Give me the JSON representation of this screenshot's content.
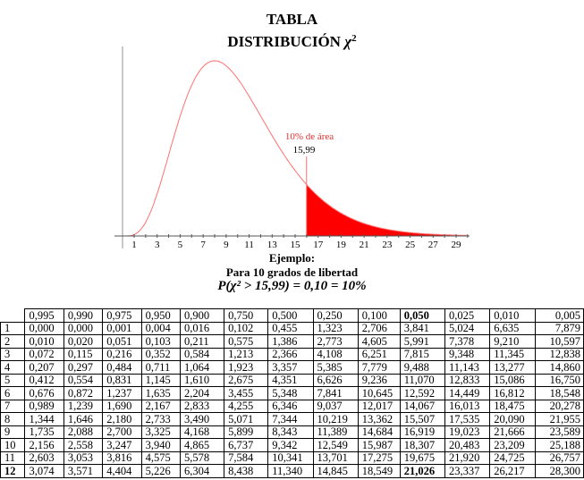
{
  "header": {
    "title_line1": "TABLA",
    "title_line2": "DISTRIBUCIÓN",
    "title_symbol": "χ",
    "title_superscript": "2"
  },
  "chart_data": {
    "type": "area",
    "title": "Distribución χ² (10 grados de libertad)",
    "xlabel": "",
    "ylabel": "",
    "x_ticks": [
      1,
      3,
      5,
      7,
      9,
      11,
      13,
      15,
      17,
      19,
      21,
      23,
      25,
      27,
      29
    ],
    "xlim": [
      0,
      30
    ],
    "degrees_of_freedom": 10,
    "critical_value": 15.99,
    "shaded_region": {
      "from": 15.99,
      "to": 30,
      "area_percent": 10
    },
    "annotation_area": "10% de área",
    "annotation_value": "15,99",
    "curve_color": "#ff7070",
    "fill_color": "#ff0000",
    "grid": false
  },
  "example": {
    "heading": "Ejemplo:",
    "subheading": "Para 10 grados de libertad",
    "formula": "P(χ² > 15,99) = 0,10 = 10%"
  },
  "table": {
    "columns": [
      "0,995",
      "0,990",
      "0,975",
      "0,950",
      "0,900",
      "0,750",
      "0,500",
      "0,250",
      "0,100",
      "0,050",
      "0,025",
      "0,010",
      "0,005"
    ],
    "rows": [
      {
        "df": "1",
        "values": [
          "0,000",
          "0,000",
          "0,001",
          "0,004",
          "0,016",
          "0,102",
          "0,455",
          "1,323",
          "2,706",
          "3,841",
          "5,024",
          "6,635",
          "7,879"
        ]
      },
      {
        "df": "2",
        "values": [
          "0,010",
          "0,020",
          "0,051",
          "0,103",
          "0,211",
          "0,575",
          "1,386",
          "2,773",
          "4,605",
          "5,991",
          "7,378",
          "9,210",
          "10,597"
        ]
      },
      {
        "df": "3",
        "values": [
          "0,072",
          "0,115",
          "0,216",
          "0,352",
          "0,584",
          "1,213",
          "2,366",
          "4,108",
          "6,251",
          "7,815",
          "9,348",
          "11,345",
          "12,838"
        ]
      },
      {
        "df": "4",
        "values": [
          "0,207",
          "0,297",
          "0,484",
          "0,711",
          "1,064",
          "1,923",
          "3,357",
          "5,385",
          "7,779",
          "9,488",
          "11,143",
          "13,277",
          "14,860"
        ]
      },
      {
        "df": "5",
        "values": [
          "0,412",
          "0,554",
          "0,831",
          "1,145",
          "1,610",
          "2,675",
          "4,351",
          "6,626",
          "9,236",
          "11,070",
          "12,833",
          "15,086",
          "16,750"
        ]
      },
      {
        "df": "6",
        "values": [
          "0,676",
          "0,872",
          "1,237",
          "1,635",
          "2,204",
          "3,455",
          "5,348",
          "7,841",
          "10,645",
          "12,592",
          "14,449",
          "16,812",
          "18,548"
        ]
      },
      {
        "df": "7",
        "values": [
          "0,989",
          "1,239",
          "1,690",
          "2,167",
          "2,833",
          "4,255",
          "6,346",
          "9,037",
          "12,017",
          "14,067",
          "16,013",
          "18,475",
          "20,278"
        ]
      },
      {
        "df": "8",
        "values": [
          "1,344",
          "1,646",
          "2,180",
          "2,733",
          "3,490",
          "5,071",
          "7,344",
          "10,219",
          "13,362",
          "15,507",
          "17,535",
          "20,090",
          "21,955"
        ]
      },
      {
        "df": "9",
        "values": [
          "1,735",
          "2,088",
          "2,700",
          "3,325",
          "4,168",
          "5,899",
          "8,343",
          "11,389",
          "14,684",
          "16,919",
          "19,023",
          "21,666",
          "23,589"
        ]
      },
      {
        "df": "10",
        "values": [
          "2,156",
          "2,558",
          "3,247",
          "3,940",
          "4,865",
          "6,737",
          "9,342",
          "12,549",
          "15,987",
          "18,307",
          "20,483",
          "23,209",
          "25,188"
        ]
      },
      {
        "df": "11",
        "values": [
          "2,603",
          "3,053",
          "3,816",
          "4,575",
          "5,578",
          "7,584",
          "10,341",
          "13,701",
          "17,275",
          "19,675",
          "21,920",
          "24,725",
          "26,757"
        ]
      },
      {
        "df": "12",
        "values": [
          "3,074",
          "3,571",
          "4,404",
          "5,226",
          "6,304",
          "8,438",
          "11,340",
          "14,845",
          "18,549",
          "21,026",
          "23,337",
          "26,217",
          "28,300"
        ]
      }
    ],
    "bold_header_column": "0,050",
    "bold_row": "12",
    "bold_cell": {
      "row": "12",
      "column": "0,050",
      "value": "21,026"
    }
  }
}
